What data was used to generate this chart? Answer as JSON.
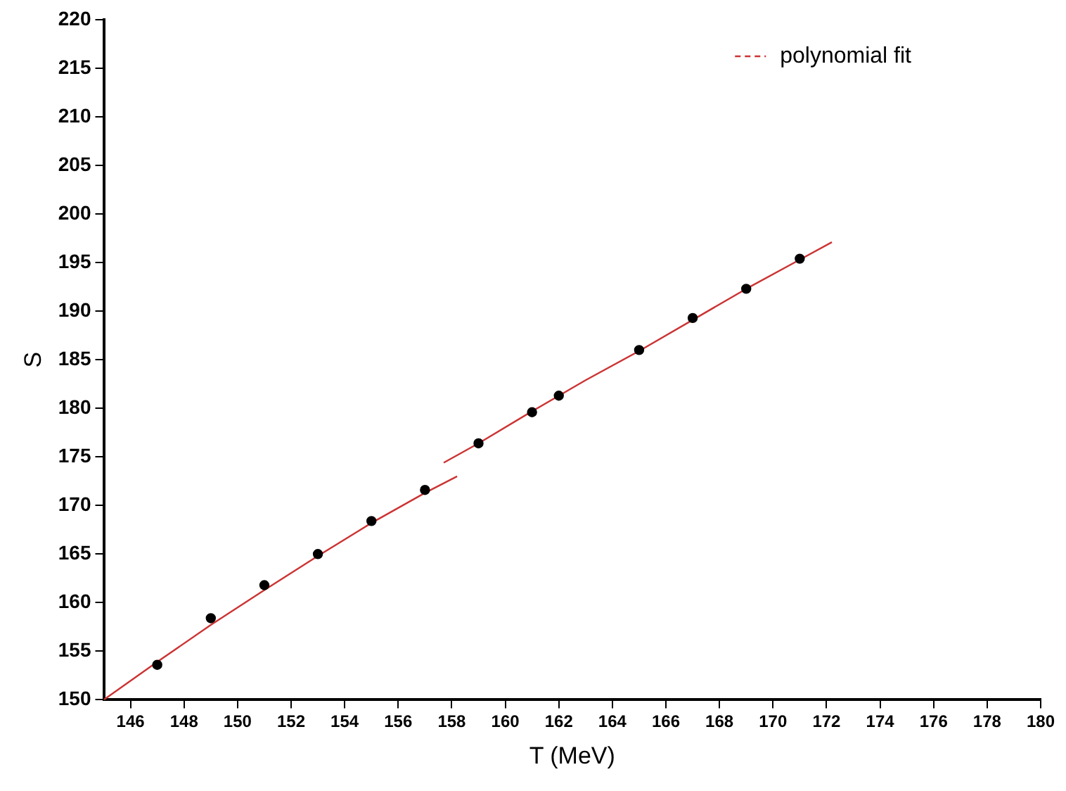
{
  "chart_data": {
    "type": "scatter",
    "xlabel": "T (MeV)",
    "ylabel": "S",
    "xlim": [
      145,
      180
    ],
    "xticks": [
      146,
      148,
      150,
      152,
      154,
      156,
      158,
      160,
      162,
      164,
      166,
      168,
      170,
      172,
      174,
      176,
      178,
      180
    ],
    "ylim": [
      150,
      220
    ],
    "yticks": [
      150,
      155,
      160,
      165,
      170,
      175,
      180,
      185,
      190,
      195,
      200,
      205,
      210,
      215,
      220
    ],
    "grid": false,
    "legend": "top right",
    "marker": "circle",
    "series": [
      {
        "type": "scatter",
        "color": "#000000",
        "x": [
          147,
          149,
          151,
          153,
          155,
          157,
          159,
          161,
          162,
          165,
          167,
          169,
          171
        ],
        "values": [
          153.6,
          158.4,
          161.8,
          165,
          168.4,
          171.6,
          176.4,
          179.6,
          181.3,
          186,
          189.3,
          192.3,
          195.4
        ]
      },
      {
        "type": "line",
        "name": "polynomial fit",
        "color": "#cc3333",
        "line_style": "solid",
        "marker": "none",
        "x": [
          145,
          147,
          149,
          151,
          153,
          155,
          157,
          158.2,
          158,
          157.7,
          159,
          161,
          163,
          165,
          167,
          169,
          171,
          172.2
        ],
        "values": [
          150,
          153.9,
          157.7,
          161.3,
          164.8,
          168.2,
          171.3,
          173,
          null,
          174.4,
          176.4,
          179.7,
          182.9,
          185.9,
          189.1,
          192.3,
          195.3,
          197.1
        ]
      }
    ]
  }
}
